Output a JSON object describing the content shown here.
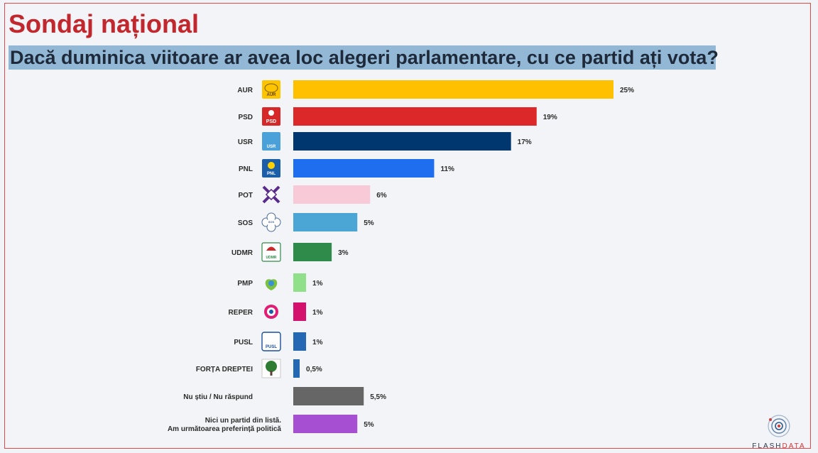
{
  "header": {
    "title": "Sondaj național",
    "subtitle": "Dacă duminica viitoare ar avea loc alegeri parlamentare, cu ce partid ați vota?"
  },
  "brand": {
    "name_part1": "FLASH",
    "name_part2": "DATA"
  },
  "chart_data": {
    "type": "bar",
    "orientation": "horizontal",
    "title": "Dacă duminica viitoare ar avea loc alegeri parlamentare, cu ce partid ați vota?",
    "xlim": [
      0,
      25
    ],
    "categories": [
      "AUR",
      "PSD",
      "USR",
      "PNL",
      "POT",
      "SOS",
      "UDMR",
      "PMP",
      "REPER",
      "PUSL",
      "FORȚA DREPTEI",
      "Nu știu / Nu răspund",
      "Nici un partid din listă. Am următoarea preferință politică"
    ],
    "category_lines": [
      [
        "AUR"
      ],
      [
        "PSD"
      ],
      [
        "USR"
      ],
      [
        "PNL"
      ],
      [
        "POT"
      ],
      [
        "SOS"
      ],
      [
        "UDMR"
      ],
      [
        "PMP"
      ],
      [
        "REPER"
      ],
      [
        "PUSL"
      ],
      [
        "FORȚA DREPTEI"
      ],
      [
        "Nu știu / Nu răspund"
      ],
      [
        "Nici un partid din listă.",
        "Am următoarea preferință politică"
      ]
    ],
    "values": [
      25,
      19,
      17,
      11,
      6,
      5,
      3,
      1,
      1,
      1,
      0.5,
      5.5,
      5
    ],
    "value_labels": [
      "25%",
      "19%",
      "17%",
      "11%",
      "6%",
      "5%",
      "3%",
      "1%",
      "1%",
      "1%",
      "0,5%",
      "5,5%",
      "5%"
    ],
    "colors": [
      "#ffc000",
      "#dc2828",
      "#00376e",
      "#1f6ef0",
      "#f8cad8",
      "#4ba6d6",
      "#2e8b4a",
      "#90e08a",
      "#d4126e",
      "#2468b4",
      "#2468b4",
      "#666666",
      "#a64fd3"
    ],
    "logos": [
      "AUR",
      "PSD",
      "USR",
      "PNL",
      "",
      "SOS",
      "UDMR",
      "",
      "",
      "PUSL",
      "",
      "",
      ""
    ],
    "logo_icons": [
      "aur-logo-icon",
      "psd-logo-icon",
      "usr-logo-icon",
      "pnl-logo-icon",
      "pot-logo-icon",
      "sos-logo-icon",
      "udmr-logo-icon",
      "pmp-logo-icon",
      "reper-logo-icon",
      "pusl-logo-icon",
      "forta-dreptei-logo-icon",
      "",
      ""
    ]
  }
}
